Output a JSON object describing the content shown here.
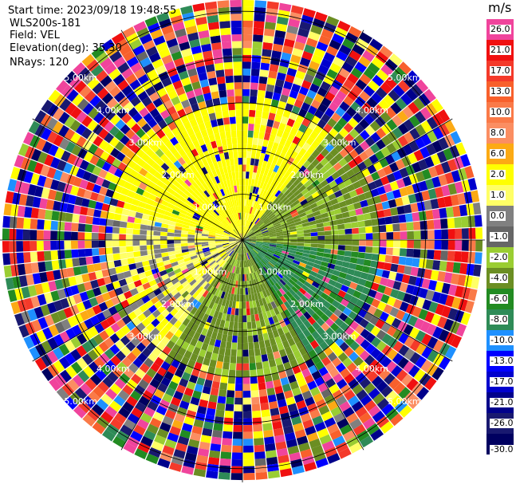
{
  "info": {
    "start_time": "Start time: 2023/09/18 19:48:55",
    "radar_name": "WLS200s-181",
    "field": "Field: VEL",
    "elevation": "Elevation(deg): 35.30",
    "nrays": "NRays: 120"
  },
  "colorbar": {
    "unit": "m/s",
    "segments": [
      {
        "label": "26.0",
        "color": "#f0449c"
      },
      {
        "label": "21.0",
        "color": "#f01010"
      },
      {
        "label": "17.0",
        "color": "#f43a2a"
      },
      {
        "label": "13.0",
        "color": "#f8602c"
      },
      {
        "label": "10.0",
        "color": "#fa7a48"
      },
      {
        "label": "8.0",
        "color": "#fb8e62"
      },
      {
        "label": "6.0",
        "color": "#fcaa14"
      },
      {
        "label": "2.0",
        "color": "#ffff00"
      },
      {
        "label": "1.0",
        "color": "#ffff66"
      },
      {
        "label": "0.0",
        "color": "#808080"
      },
      {
        "label": "-1.0",
        "color": "#666666"
      },
      {
        "label": "-2.0",
        "color": "#9acd32"
      },
      {
        "label": "-4.0",
        "color": "#6b8e23"
      },
      {
        "label": "-6.0",
        "color": "#228b22"
      },
      {
        "label": "-8.0",
        "color": "#2e8b57"
      },
      {
        "label": "-10.0",
        "color": "#1e90ff"
      },
      {
        "label": "-13.0",
        "color": "#0000ff"
      },
      {
        "label": "-17.0",
        "color": "#0000cd"
      },
      {
        "label": "-21.0",
        "color": "#00008b"
      },
      {
        "label": "-26.0",
        "color": "#191970"
      },
      {
        "label": "-30.0",
        "color": "#000060"
      }
    ]
  },
  "chart_data": {
    "type": "heatmap",
    "projection": "polar-ppi",
    "field": "VEL",
    "units": "m/s",
    "nrays": 120,
    "range_rings_km": [
      1.0,
      2.0,
      3.0,
      4.0,
      5.0
    ],
    "ring_labels": [
      "1.00km",
      "2.00km",
      "3.00km",
      "4.00km",
      "5.00km"
    ],
    "max_range_km": 5.3,
    "spokes_deg": [
      0,
      30,
      60,
      90,
      120,
      150,
      180,
      210,
      240,
      270,
      300,
      330
    ],
    "velocity_bounds": [
      -30,
      -26,
      -21,
      -17,
      -13,
      -10,
      -8,
      -6,
      -4,
      -2,
      -1,
      0,
      1,
      2,
      6,
      8,
      10,
      13,
      17,
      21,
      26
    ],
    "clean_range_km": 3.0,
    "sectors": [
      {
        "azimuth_from_deg": 285,
        "azimuth_to_deg": 360,
        "velocity_ms": 3.5
      },
      {
        "azimuth_from_deg": 0,
        "azimuth_to_deg": 40,
        "velocity_ms": 3.0
      },
      {
        "azimuth_from_deg": 40,
        "azimuth_to_deg": 95,
        "velocity_ms": -2.5
      },
      {
        "azimuth_from_deg": 95,
        "azimuth_to_deg": 150,
        "velocity_ms": -6.5
      },
      {
        "azimuth_from_deg": 150,
        "azimuth_to_deg": 215,
        "velocity_ms": -2.5
      },
      {
        "azimuth_from_deg": 215,
        "azimuth_to_deg": 285,
        "velocity_ms": 1.5
      }
    ]
  }
}
